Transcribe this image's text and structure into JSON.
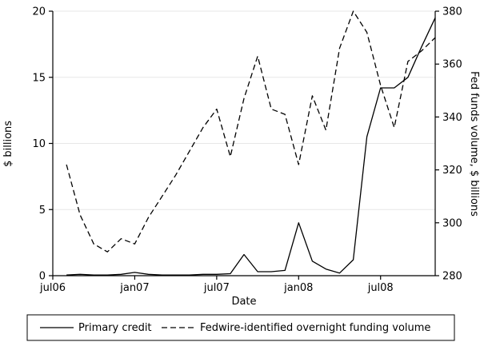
{
  "chart_data": {
    "type": "line",
    "title": "",
    "xlabel": "Date",
    "ylabel_left": "$ billions",
    "ylabel_right": "Fed funds volume, $ billions",
    "x_tick_labels": [
      "jul06",
      "jan07",
      "jul07",
      "jan08",
      "jul08"
    ],
    "x_tick_month_index": [
      0,
      6,
      12,
      18,
      24
    ],
    "x_total_months": 28,
    "categories": [
      "aug06",
      "sep06",
      "oct06",
      "nov06",
      "dec06",
      "jan07",
      "feb07",
      "mar07",
      "apr07",
      "may07",
      "jun07",
      "jul07",
      "aug07",
      "sep07",
      "oct07",
      "nov07",
      "dec07",
      "jan08",
      "feb08",
      "mar08",
      "apr08",
      "may08",
      "jun08",
      "jul08",
      "aug08",
      "sep08",
      "oct08",
      "nov08"
    ],
    "series": [
      {
        "name": "Primary credit",
        "axis": "left",
        "style": "solid",
        "values": [
          0.05,
          0.1,
          0.05,
          0.05,
          0.1,
          0.25,
          0.1,
          0.05,
          0.05,
          0.05,
          0.1,
          0.1,
          0.15,
          1.6,
          0.3,
          0.3,
          0.4,
          4.0,
          1.1,
          0.5,
          0.2,
          1.2,
          10.5,
          14.2,
          14.2,
          15.0,
          17.3,
          19.5
        ]
      },
      {
        "name": "Fedwire-identified overnight funding volume",
        "axis": "right",
        "style": "dashed",
        "values": [
          322,
          303,
          292,
          289,
          294,
          292,
          302,
          310,
          318,
          327,
          336,
          343,
          325,
          347,
          363,
          343,
          341,
          322,
          348,
          335,
          366,
          380,
          372,
          352,
          336,
          361,
          365,
          370
        ]
      }
    ],
    "left_axis": {
      "min": 0,
      "max": 20,
      "ticks": [
        0,
        5,
        10,
        15,
        20
      ]
    },
    "right_axis": {
      "min": 280,
      "max": 380,
      "ticks": [
        280,
        300,
        320,
        340,
        360,
        380
      ]
    },
    "grid": true,
    "legend_position": "bottom"
  },
  "legend": {
    "items": [
      {
        "label": "Primary credit",
        "style": "solid"
      },
      {
        "label": "Fedwire-identified overnight funding volume",
        "style": "dashed"
      }
    ]
  },
  "colors": {
    "line": "#000000",
    "grid": "#e7e7e7",
    "background": "#ffffff",
    "border": "#000000"
  }
}
